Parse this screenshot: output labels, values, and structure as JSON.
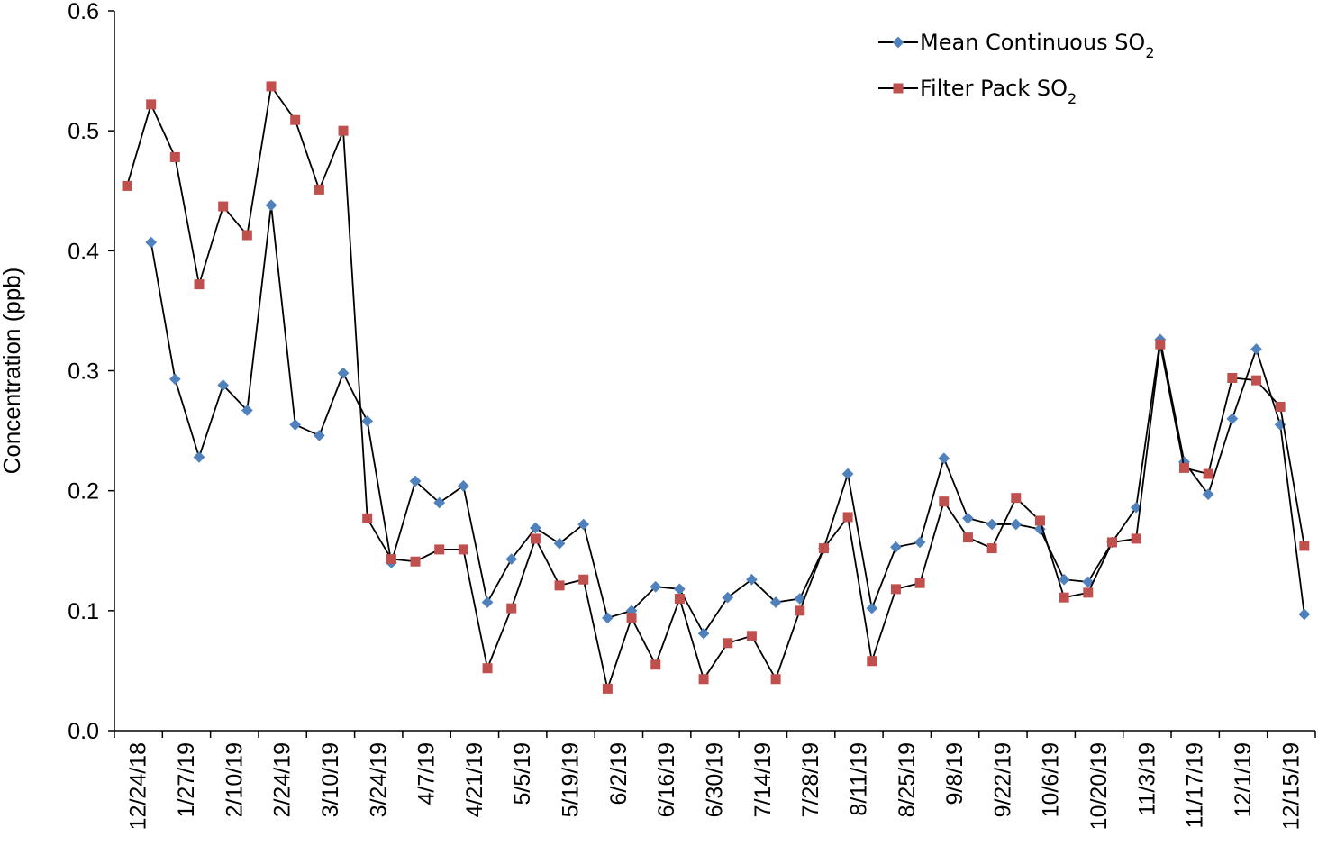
{
  "chart_data": {
    "type": "line",
    "title": "",
    "xlabel": "",
    "ylabel": "Concentration (ppb)",
    "ylim": [
      0,
      0.6
    ],
    "yticks": [
      "0.0",
      "0.1",
      "0.2",
      "0.3",
      "0.4",
      "0.5",
      "0.6"
    ],
    "grid": false,
    "legend_position": "top-right",
    "x_tick_labels": [
      "12/24/18",
      "1/27/19",
      "2/10/19",
      "2/24/19",
      "3/10/19",
      "3/24/19",
      "4/7/19",
      "4/21/19",
      "5/5/19",
      "5/19/19",
      "6/2/19",
      "6/16/19",
      "6/30/19",
      "7/14/19",
      "7/28/19",
      "8/11/19",
      "8/25/19",
      "9/8/19",
      "9/22/19",
      "10/6/19",
      "10/20/19",
      "11/3/19",
      "11/17/19",
      "12/1/19",
      "12/15/19"
    ],
    "series": [
      {
        "name": "Mean Continuous SO",
        "subscript": "2",
        "marker": "diamond",
        "color": "#4f81bd",
        "values": [
          null,
          0.407,
          0.293,
          0.228,
          0.288,
          0.267,
          0.438,
          0.255,
          0.246,
          0.298,
          0.258,
          0.14,
          0.208,
          0.19,
          0.204,
          0.107,
          0.143,
          0.169,
          0.156,
          0.172,
          0.094,
          0.1,
          0.12,
          0.118,
          0.081,
          0.111,
          0.126,
          0.107,
          0.11,
          0.152,
          0.214,
          0.102,
          0.153,
          0.157,
          0.227,
          0.177,
          0.172,
          0.172,
          0.168,
          0.126,
          0.124,
          0.157,
          0.186,
          0.326,
          0.224,
          0.197,
          0.26,
          0.318,
          0.255,
          0.097
        ]
      },
      {
        "name": "Filter Pack SO",
        "subscript": "2",
        "marker": "square",
        "color": "#c0504d",
        "values": [
          0.454,
          0.522,
          0.478,
          0.372,
          0.437,
          0.413,
          0.537,
          0.509,
          0.451,
          0.5,
          0.177,
          0.143,
          0.141,
          0.151,
          0.151,
          0.052,
          0.102,
          0.16,
          0.121,
          0.126,
          0.035,
          0.094,
          0.055,
          0.11,
          0.043,
          0.073,
          0.079,
          0.043,
          0.1,
          0.152,
          0.178,
          0.058,
          0.118,
          0.123,
          0.191,
          0.161,
          0.152,
          0.194,
          0.175,
          0.111,
          0.115,
          0.157,
          0.16,
          0.322,
          0.219,
          0.214,
          0.294,
          0.292,
          0.27,
          0.154
        ]
      }
    ]
  }
}
